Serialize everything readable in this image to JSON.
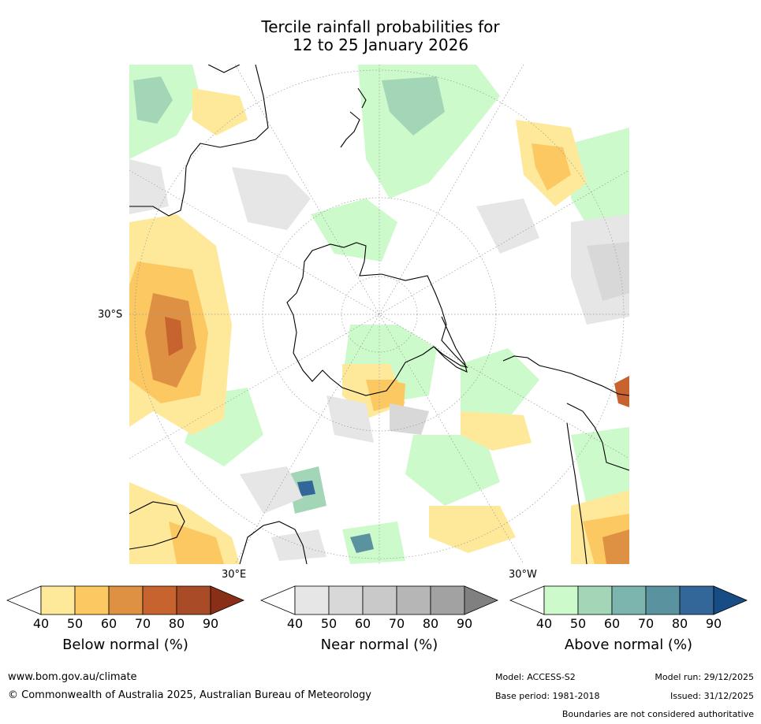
{
  "title": {
    "line1": "Tercile rainfall probabilities for",
    "line2": "12 to 25 January 2026"
  },
  "map": {
    "projection": "south-polar-stereographic",
    "latitude_label": "30°S",
    "longitude_labels": [
      "30°E",
      "30°W"
    ],
    "colors": {
      "ocean_background": "#ffffff",
      "coastline": "#000000",
      "graticule": "#999999"
    }
  },
  "colorbars": [
    {
      "name": "below",
      "title": "Below normal (%)",
      "ticks": [
        "40",
        "50",
        "60",
        "70",
        "80",
        "90"
      ],
      "colors": [
        "#ffffff",
        "#fee99a",
        "#fbc862",
        "#df9143",
        "#c6632f",
        "#a94b26",
        "#8a2f17"
      ]
    },
    {
      "name": "near",
      "title": "Near normal (%)",
      "ticks": [
        "40",
        "50",
        "60",
        "70",
        "80",
        "90"
      ],
      "colors": [
        "#ffffff",
        "#e6e6e6",
        "#d8d8d8",
        "#c9c9c9",
        "#b6b6b6",
        "#a2a2a2",
        "#808080"
      ]
    },
    {
      "name": "above",
      "title": "Above normal (%)",
      "ticks": [
        "40",
        "50",
        "60",
        "70",
        "80",
        "90"
      ],
      "colors": [
        "#ffffff",
        "#cdfacb",
        "#a3d6b7",
        "#7cb4ae",
        "#5a92a0",
        "#336699",
        "#174c85"
      ]
    }
  ],
  "footer": {
    "website": "www.bom.gov.au/climate",
    "copyright": "© Commonwealth of Australia 2025, Australian Bureau of Meteorology",
    "model": "Model: ACCESS-S2",
    "base_period": "Base period: 1981-2018",
    "model_run": "Model run: 29/12/2025",
    "issued": "Issued: 31/12/2025",
    "disclaimer": "Boundaries are not considered authoritative"
  }
}
